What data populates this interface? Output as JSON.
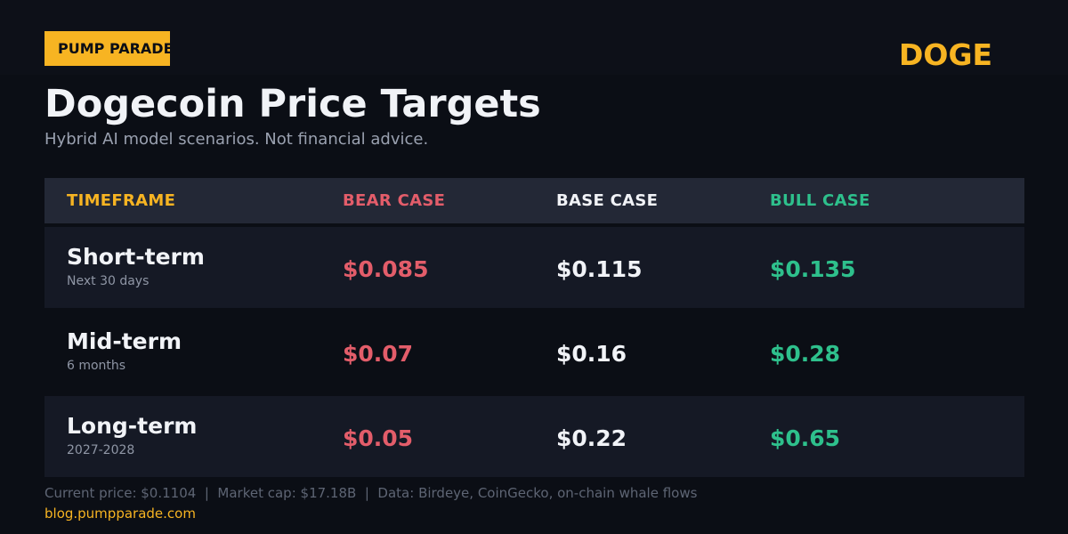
{
  "brand": {
    "badge_text": "PUMP PARADE",
    "ticker": "DOGE",
    "accent_color": "#f7b422"
  },
  "header": {
    "title": "Dogecoin Price Targets",
    "subtitle": "Hybrid AI model scenarios. Not financial advice."
  },
  "table": {
    "columns": {
      "timeframe": "TIMEFRAME",
      "bear": "BEAR CASE",
      "base": "BASE CASE",
      "bull": "BULL CASE"
    },
    "colors": {
      "timeframe": "#f7b422",
      "bear": "#e35d6a",
      "base": "#f1f3f7",
      "bull": "#2ec08c"
    },
    "rows": [
      {
        "label": "Short-term",
        "sub": "Next 30 days",
        "bear": "$0.085",
        "base": "$0.115",
        "bull": "$0.135"
      },
      {
        "label": "Mid-term",
        "sub": "6 months",
        "bear": "$0.07",
        "base": "$0.16",
        "bull": "$0.28"
      },
      {
        "label": "Long-term",
        "sub": "2027-2028",
        "bear": "$0.05",
        "base": "$0.22",
        "bull": "$0.65"
      }
    ]
  },
  "footer": {
    "meta": "Current price: $0.1104  |  Market cap: $17.18B  |  Data: Birdeye, CoinGecko, on-chain whale flows",
    "url": "blog.pumpparade.com"
  }
}
